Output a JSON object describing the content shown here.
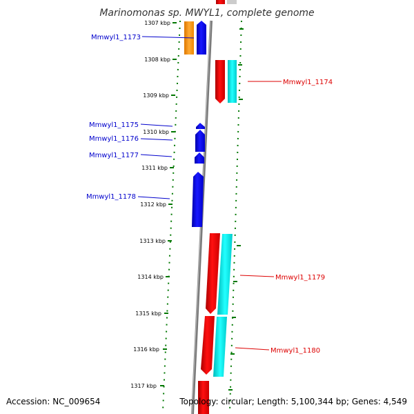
{
  "title": "Marinomonas sp. MWYL1, complete genome",
  "footer": {
    "accession": "Accession: NC_009654",
    "summary": "Topology: circular; Length: 5,100,344 bp; Genes: 4,549"
  },
  "kbp_ticks": [
    "1307 kbp",
    "1308 kbp",
    "1309 kbp",
    "1310 kbp",
    "1311 kbp",
    "1312 kbp",
    "1313 kbp",
    "1314 kbp",
    "1315 kbp",
    "1316 kbp",
    "1317 kbp"
  ],
  "genes": [
    {
      "label": "Mmwyl1_1173",
      "color": "#0000cc"
    },
    {
      "label": "Mmwyl1_1174",
      "color": "#dd0000"
    },
    {
      "label": "Mmwyl1_1175",
      "color": "#0000cc"
    },
    {
      "label": "Mmwyl1_1176",
      "color": "#0000cc"
    },
    {
      "label": "Mmwyl1_1177",
      "color": "#0000cc"
    },
    {
      "label": "Mmwyl1_1178",
      "color": "#0000cc"
    },
    {
      "label": "Mmwyl1_1179",
      "color": "#dd0000"
    },
    {
      "label": "Mmwyl1_1180",
      "color": "#dd0000"
    }
  ],
  "colors": {
    "forward_cds": "#0000ee",
    "reverse_cds": "#ee0000",
    "forward_feature": "#ff8800",
    "reverse_feature": "#00dddd",
    "backbone": "#888888",
    "ticks": "#007700"
  }
}
